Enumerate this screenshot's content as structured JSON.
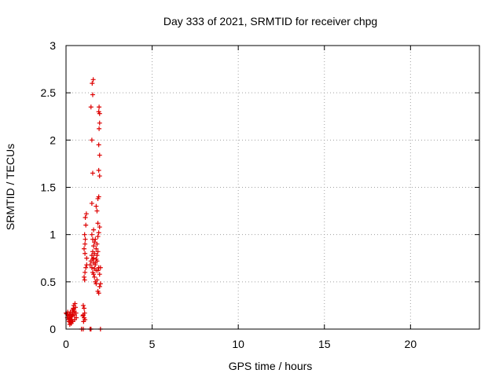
{
  "chart_data": {
    "type": "scatter",
    "title": "Day 333 of 2021, SRMTID for receiver chpg",
    "xlabel": "GPS time / hours",
    "ylabel": "SRMTID / TECUs",
    "xlim": [
      0,
      24
    ],
    "ylim": [
      0,
      3
    ],
    "x_ticks": [
      0,
      5,
      10,
      15,
      20
    ],
    "x_tick_labels": [
      "0",
      "5",
      "10",
      "15",
      "20"
    ],
    "y_ticks": [
      0,
      0.5,
      1,
      1.5,
      2,
      2.5,
      3
    ],
    "y_tick_labels": [
      "0",
      "0.5",
      "1",
      "1.5",
      "2",
      "2.5",
      "3"
    ],
    "grid": true,
    "marker": "+",
    "color": "#dd0000",
    "series": [
      {
        "points": [
          [
            0.0,
            0.17
          ],
          [
            0.05,
            0.16
          ],
          [
            0.08,
            0.12
          ],
          [
            0.1,
            0.18
          ],
          [
            0.12,
            0.14
          ],
          [
            0.15,
            0.1
          ],
          [
            0.18,
            0.08
          ],
          [
            0.2,
            0.15
          ],
          [
            0.22,
            0.11
          ],
          [
            0.25,
            0.07
          ],
          [
            0.28,
            0.09
          ],
          [
            0.3,
            0.13
          ],
          [
            0.33,
            0.16
          ],
          [
            0.35,
            0.1
          ],
          [
            0.38,
            0.2
          ],
          [
            0.4,
            0.18
          ],
          [
            0.42,
            0.22
          ],
          [
            0.45,
            0.25
          ],
          [
            0.48,
            0.19
          ],
          [
            0.5,
            0.15
          ],
          [
            0.52,
            0.27
          ],
          [
            0.55,
            0.23
          ],
          [
            0.58,
            0.17
          ],
          [
            0.6,
            0.12
          ],
          [
            0.3,
            0.06
          ],
          [
            0.22,
            0.05
          ],
          [
            0.18,
            0.12
          ],
          [
            0.25,
            0.18
          ],
          [
            0.35,
            0.14
          ],
          [
            0.45,
            0.21
          ],
          [
            0.5,
            0.1
          ],
          [
            0.4,
            0.08
          ],
          [
            1.0,
            0.25
          ],
          [
            1.05,
            0.22
          ],
          [
            1.0,
            0.15
          ],
          [
            1.05,
            0.12
          ],
          [
            1.1,
            0.1
          ],
          [
            1.02,
            0.08
          ],
          [
            1.08,
            0.17
          ],
          [
            0.98,
            0.14
          ],
          [
            1.05,
            0.55
          ],
          [
            1.1,
            0.6
          ],
          [
            1.08,
            0.52
          ],
          [
            1.15,
            0.65
          ],
          [
            1.2,
            0.68
          ],
          [
            1.05,
            0.85
          ],
          [
            1.1,
            0.9
          ],
          [
            1.12,
            0.95
          ],
          [
            1.08,
            1.0
          ],
          [
            1.15,
            1.1
          ],
          [
            1.12,
            1.18
          ],
          [
            1.18,
            1.22
          ],
          [
            1.1,
            0.8
          ],
          [
            1.2,
            0.75
          ],
          [
            1.4,
            0.68
          ],
          [
            1.45,
            0.72
          ],
          [
            1.5,
            0.78
          ],
          [
            1.55,
            0.82
          ],
          [
            1.6,
            0.88
          ],
          [
            1.65,
            0.92
          ],
          [
            1.7,
            0.95
          ],
          [
            1.5,
            0.65
          ],
          [
            1.55,
            0.6
          ],
          [
            1.6,
            0.58
          ],
          [
            1.65,
            0.55
          ],
          [
            1.7,
            0.5
          ],
          [
            1.75,
            0.48
          ],
          [
            1.8,
            0.52
          ],
          [
            1.85,
            0.62
          ],
          [
            1.9,
            0.65
          ],
          [
            1.95,
            0.58
          ],
          [
            2.0,
            0.65
          ],
          [
            1.85,
            0.4
          ],
          [
            1.9,
            0.38
          ],
          [
            1.95,
            0.45
          ],
          [
            2.0,
            0.48
          ],
          [
            1.6,
            0.75
          ],
          [
            1.65,
            0.8
          ],
          [
            1.75,
            0.85
          ],
          [
            1.8,
            0.72
          ],
          [
            1.7,
            0.68
          ],
          [
            1.75,
            0.62
          ],
          [
            1.8,
            0.9
          ],
          [
            1.85,
            0.98
          ],
          [
            1.9,
            1.02
          ],
          [
            1.95,
            1.08
          ],
          [
            1.85,
            1.12
          ],
          [
            1.8,
            1.25
          ],
          [
            1.75,
            1.3
          ],
          [
            1.85,
            1.38
          ],
          [
            1.9,
            1.4
          ],
          [
            1.5,
            1.0
          ],
          [
            1.55,
            0.95
          ],
          [
            1.6,
            1.05
          ],
          [
            1.5,
            1.33
          ],
          [
            1.55,
            1.65
          ],
          [
            1.5,
            2.0
          ],
          [
            1.45,
            2.35
          ],
          [
            1.55,
            2.48
          ],
          [
            1.52,
            2.6
          ],
          [
            1.58,
            2.64
          ],
          [
            1.9,
            2.3
          ],
          [
            1.92,
            2.35
          ],
          [
            1.95,
            2.28
          ],
          [
            1.95,
            2.18
          ],
          [
            1.92,
            2.12
          ],
          [
            1.9,
            1.95
          ],
          [
            1.95,
            1.84
          ],
          [
            1.9,
            1.68
          ],
          [
            1.95,
            1.62
          ],
          [
            1.7,
            0.7
          ],
          [
            1.75,
            0.74
          ],
          [
            1.65,
            0.64
          ],
          [
            1.6,
            0.7
          ],
          [
            1.55,
            0.74
          ],
          [
            1.8,
            0.78
          ],
          [
            1.85,
            0.82
          ],
          [
            0.9,
            0.0
          ],
          [
            1.0,
            0.0
          ],
          [
            1.4,
            0.0
          ],
          [
            1.45,
            0.0
          ],
          [
            2.0,
            0.0
          ]
        ]
      }
    ]
  }
}
